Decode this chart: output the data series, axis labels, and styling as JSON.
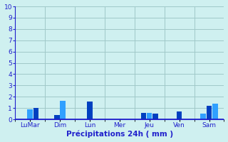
{
  "title": "",
  "xlabel": "Précipitations 24h ( mm )",
  "ylabel": "",
  "ylim": [
    0,
    10
  ],
  "yticks": [
    0,
    1,
    2,
    3,
    4,
    5,
    6,
    7,
    8,
    9,
    10
  ],
  "background_color": "#cff0f0",
  "bar_color_dark": "#0040c0",
  "bar_color_light": "#30a0ff",
  "grid_color": "#a0c8c8",
  "axis_color": "#2020cc",
  "text_color": "#2020cc",
  "groups": [
    {
      "label": "LuMar",
      "bars": [
        0.0,
        0.85,
        1.0
      ],
      "colors": [
        "dark",
        "light",
        "dark"
      ]
    },
    {
      "label": "Dim",
      "bars": [
        0.35,
        1.65
      ],
      "colors": [
        "dark",
        "light"
      ]
    },
    {
      "label": "Lun",
      "bars": [
        1.55
      ],
      "colors": [
        "dark"
      ]
    },
    {
      "label": "Mer",
      "bars": [],
      "colors": []
    },
    {
      "label": "Jeu",
      "bars": [
        0.55,
        0.55,
        0.5
      ],
      "colors": [
        "dark",
        "light",
        "dark"
      ]
    },
    {
      "label": "Ven",
      "bars": [
        0.7
      ],
      "colors": [
        "dark"
      ]
    },
    {
      "label": "Sam",
      "bars": [
        0.5,
        1.2,
        1.4
      ],
      "colors": [
        "light",
        "dark",
        "light"
      ]
    }
  ],
  "n_groups": 7,
  "figsize": [
    3.2,
    2.0
  ],
  "dpi": 100
}
